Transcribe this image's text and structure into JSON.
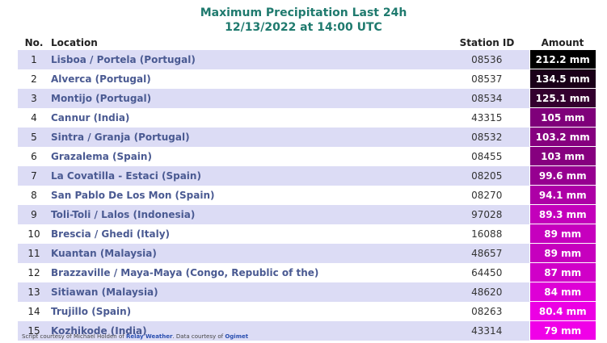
{
  "header": {
    "title": "Maximum Precipitation Last 24h",
    "subtitle": "12/13/2022 at 14:00 UTC"
  },
  "table": {
    "columns": {
      "no": "No.",
      "location": "Location",
      "station_id": "Station ID",
      "amount": "Amount"
    },
    "rows": [
      {
        "no": "1",
        "location": "Lisboa / Portela (Portugal)",
        "station_id": "08536",
        "amount": "212.2 mm",
        "color": "#000000"
      },
      {
        "no": "2",
        "location": "Alverca (Portugal)",
        "station_id": "08537",
        "amount": "134.5 mm",
        "color": "#1a0018"
      },
      {
        "no": "3",
        "location": "Montijo (Portugal)",
        "station_id": "08534",
        "amount": "125.1 mm",
        "color": "#33002e"
      },
      {
        "no": "4",
        "location": "Cannur (India)",
        "station_id": "43315",
        "amount": "105 mm",
        "color": "#7f007a"
      },
      {
        "no": "5",
        "location": "Sintra / Granja (Portugal)",
        "station_id": "08532",
        "amount": "103.2 mm",
        "color": "#86007f"
      },
      {
        "no": "6",
        "location": "Grazalema (Spain)",
        "station_id": "08455",
        "amount": "103 mm",
        "color": "#86007f"
      },
      {
        "no": "7",
        "location": "La Covatilla - Estaci (Spain)",
        "station_id": "08205",
        "amount": "99.6 mm",
        "color": "#960090"
      },
      {
        "no": "8",
        "location": "San Pablo De Los Mon (Spain)",
        "station_id": "08270",
        "amount": "94.1 mm",
        "color": "#ad00a6"
      },
      {
        "no": "9",
        "location": "Toli-Toli / Lalos (Indonesia)",
        "station_id": "97028",
        "amount": "89.3 mm",
        "color": "#c300bb"
      },
      {
        "no": "10",
        "location": "Brescia / Ghedi (Italy)",
        "station_id": "16088",
        "amount": "89 mm",
        "color": "#c600be"
      },
      {
        "no": "11",
        "location": "Kuantan (Malaysia)",
        "station_id": "48657",
        "amount": "89 mm",
        "color": "#c600be"
      },
      {
        "no": "12",
        "location": "Brazzaville / Maya-Maya (Congo, Republic of the)",
        "station_id": "64450",
        "amount": "87 mm",
        "color": "#d000c8"
      },
      {
        "no": "13",
        "location": "Sitiawan (Malaysia)",
        "station_id": "48620",
        "amount": "84 mm",
        "color": "#de00d6"
      },
      {
        "no": "14",
        "location": "Trujillo (Spain)",
        "station_id": "08263",
        "amount": "80.4 mm",
        "color": "#ec00e4"
      },
      {
        "no": "15",
        "location": "Kozhikode (India)",
        "station_id": "43314",
        "amount": "79 mm",
        "color": "#f000e8"
      }
    ]
  },
  "footer": {
    "text1": "Script courtesy of  Michael Holden of ",
    "link1": "Relay Weather",
    "text2": ". Data courtesy of ",
    "link2": "Ogimet"
  }
}
